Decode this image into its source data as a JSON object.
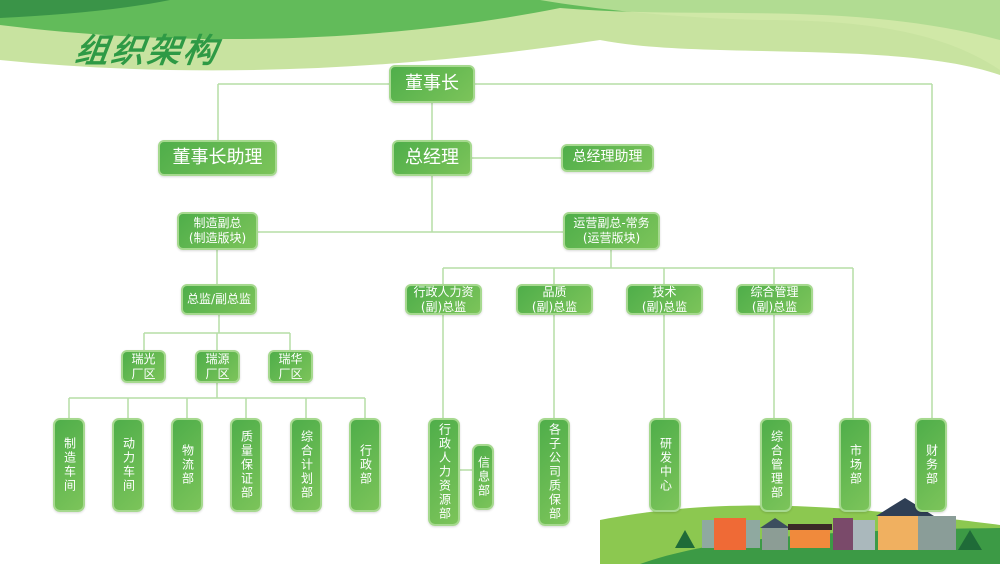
{
  "title": "组织架构",
  "colors": {
    "node": "#5cb44e",
    "line": "#b5dea6",
    "title": "#2e9a45"
  },
  "nodes": {
    "chairman": "董事长",
    "chairman_assistant": "董事长助理",
    "gm": "总经理",
    "gm_assistant": "总经理助理",
    "mfg_vp": [
      "制造副总",
      "(制造版块)"
    ],
    "ops_vp": [
      "运营副总-常务",
      "(运营版块)"
    ],
    "director": "总监/副总监",
    "factories": [
      [
        "瑞光",
        "厂区"
      ],
      [
        "瑞源",
        "厂区"
      ],
      [
        "瑞华",
        "厂区"
      ]
    ],
    "mfg_depts": [
      "制造车间",
      "动力车间",
      "物流部",
      "质量保证部",
      "综合计划部",
      "行政部"
    ],
    "ops_directors": [
      [
        "行政人力资",
        "(副)总监"
      ],
      [
        "品质",
        "(副)总监"
      ],
      [
        "技术",
        "(副)总监"
      ],
      [
        "综合管理",
        "(副)总监"
      ]
    ],
    "ops_depts": [
      "行政人力资源部",
      "信息部",
      "各子公司质保部",
      "研发中心",
      "综合管理部",
      "市场部",
      "财务部"
    ]
  }
}
